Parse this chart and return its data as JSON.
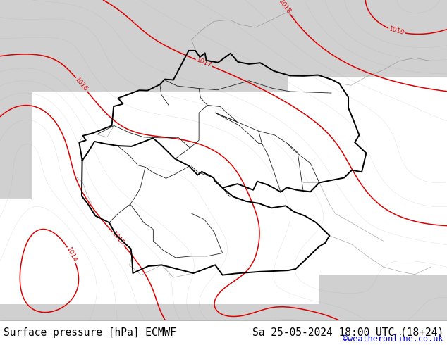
{
  "title_left": "Surface pressure [hPa] ECMWF",
  "title_right": "Sa 25-05-2024 18:00 UTC (18+24)",
  "watermark": "©weatheronline.co.uk",
  "bg_green": "#c8f0a0",
  "bg_gray": "#d0d0d0",
  "contour_color": "#dd0000",
  "border_color_de": "#000000",
  "border_color_neighbor": "#555555",
  "bottom_bar_color": "#ffffff",
  "text_color": "#000000",
  "watermark_color": "#0000cc",
  "font_size_title": 10.5,
  "font_size_watermark": 8.5,
  "fig_width": 6.34,
  "fig_height": 4.9,
  "dpi": 100,
  "lon_min": 3.5,
  "lon_max": 17.5,
  "lat_min": 46.0,
  "lat_max": 56.5
}
